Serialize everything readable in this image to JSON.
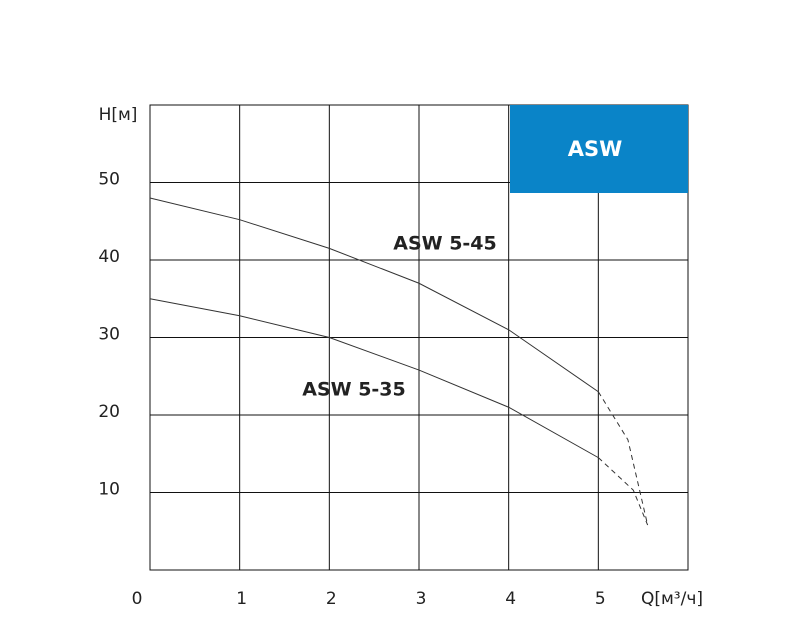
{
  "chart_data": {
    "type": "line",
    "title": "ASW",
    "title_color": "#0a84c8",
    "y_label": "H[м]",
    "x_label": "Q[м³/ч]",
    "xlim": [
      0,
      6
    ],
    "ylim": [
      0,
      60
    ],
    "xticks": [
      0,
      1,
      2,
      3,
      4,
      5
    ],
    "yticks": [
      10,
      20,
      30,
      40,
      50
    ],
    "grid": true,
    "series": [
      {
        "name": "ASW 5-45",
        "color": "#333333",
        "x": [
          0,
          1,
          2,
          3,
          4,
          5
        ],
        "values": [
          48,
          45.2,
          41.5,
          37,
          31,
          23
        ],
        "extension": {
          "x": [
            5,
            5.33,
            5.55
          ],
          "values": [
            23,
            16.8,
            5.8
          ]
        }
      },
      {
        "name": "ASW 5-35",
        "color": "#333333",
        "x": [
          0,
          1,
          2,
          3,
          4,
          5
        ],
        "values": [
          35,
          32.8,
          30,
          25.8,
          21,
          14.5
        ],
        "extension": {
          "x": [
            5,
            5.39,
            5.55
          ],
          "values": [
            14.5,
            10.3,
            5.8
          ]
        }
      }
    ]
  }
}
